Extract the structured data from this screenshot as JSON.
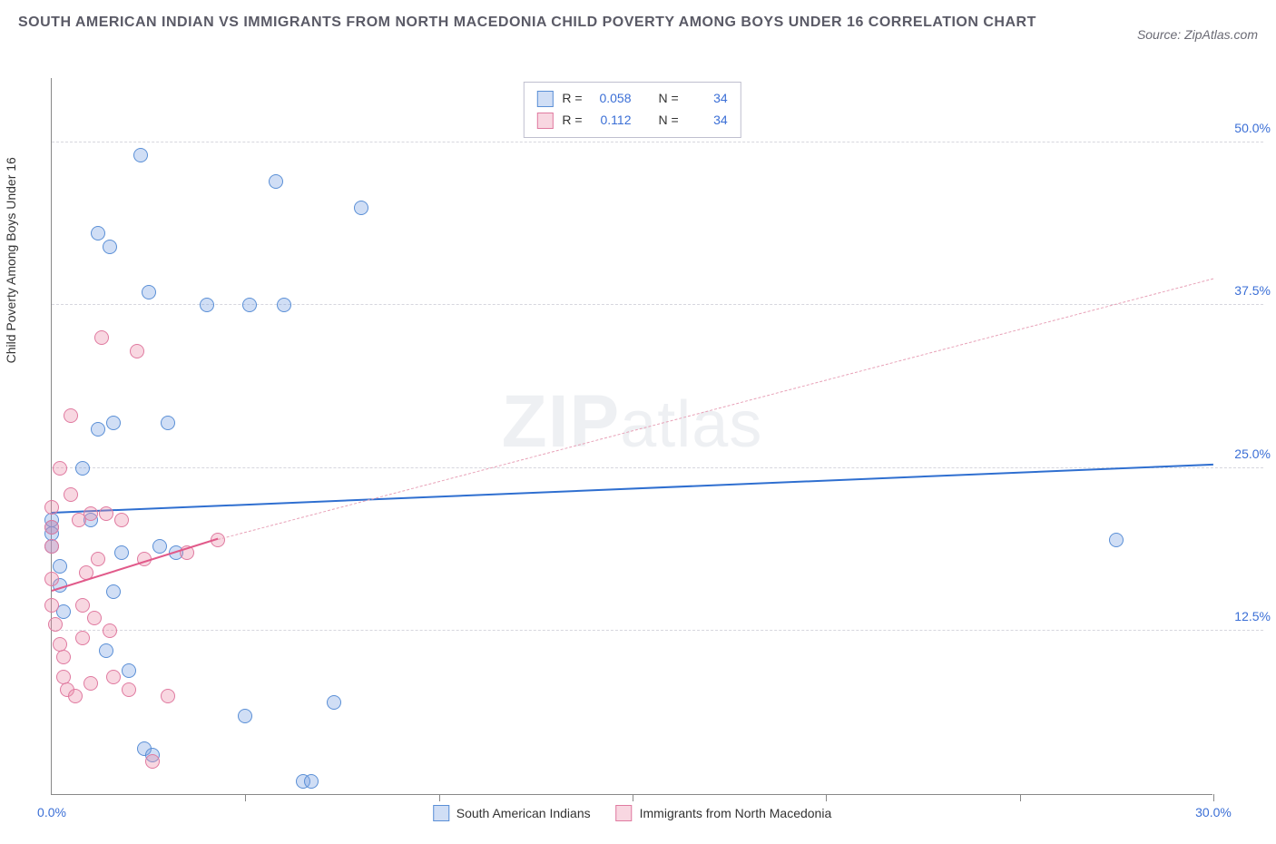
{
  "title": "SOUTH AMERICAN INDIAN VS IMMIGRANTS FROM NORTH MACEDONIA CHILD POVERTY AMONG BOYS UNDER 16 CORRELATION CHART",
  "source": "Source: ZipAtlas.com",
  "y_axis_label": "Child Poverty Among Boys Under 16",
  "watermark_a": "ZIP",
  "watermark_b": "atlas",
  "chart": {
    "type": "scatter",
    "xlim": [
      0,
      30
    ],
    "ylim": [
      0,
      55
    ],
    "x_ticks": [
      0,
      5,
      10,
      15,
      20,
      25,
      30
    ],
    "x_tick_labels": {
      "0": "0.0%",
      "30": "30.0%"
    },
    "y_gridlines": [
      12.5,
      25.0,
      37.5,
      50.0
    ],
    "y_tick_labels": [
      "12.5%",
      "25.0%",
      "37.5%",
      "50.0%"
    ],
    "background_color": "#ffffff",
    "grid_color": "#d6d6de",
    "axis_color": "#888888",
    "marker_radius": 8,
    "marker_stroke_width": 1.2,
    "series": [
      {
        "name": "South American Indians",
        "fill": "rgba(120,160,225,0.35)",
        "stroke": "#5a8fd6",
        "R": "0.058",
        "N": "34",
        "points": [
          [
            0.0,
            20.5
          ],
          [
            0.0,
            21.0
          ],
          [
            0.0,
            20.0
          ],
          [
            0.0,
            19.0
          ],
          [
            0.2,
            17.5
          ],
          [
            0.2,
            16.0
          ],
          [
            0.3,
            14.0
          ],
          [
            0.8,
            25.0
          ],
          [
            1.0,
            21.0
          ],
          [
            1.2,
            43.0
          ],
          [
            1.5,
            42.0
          ],
          [
            1.4,
            11.0
          ],
          [
            1.6,
            15.5
          ],
          [
            1.2,
            28.0
          ],
          [
            1.6,
            28.5
          ],
          [
            1.8,
            18.5
          ],
          [
            2.0,
            9.5
          ],
          [
            2.3,
            49.0
          ],
          [
            2.4,
            3.5
          ],
          [
            2.5,
            38.5
          ],
          [
            2.6,
            3.0
          ],
          [
            2.8,
            19.0
          ],
          [
            3.0,
            28.5
          ],
          [
            3.2,
            18.5
          ],
          [
            4.0,
            37.5
          ],
          [
            5.0,
            6.0
          ],
          [
            5.1,
            37.5
          ],
          [
            5.8,
            47.0
          ],
          [
            6.0,
            37.5
          ],
          [
            6.5,
            1.0
          ],
          [
            6.7,
            1.0
          ],
          [
            7.3,
            7.0
          ],
          [
            8.0,
            45.0
          ],
          [
            27.5,
            19.5
          ]
        ],
        "trend": {
          "x1": 0,
          "y1": 21.5,
          "x2": 30,
          "y2": 25.2,
          "style": "solid",
          "color": "#2f6fd0",
          "width": 2.5
        },
        "trend_ext": null
      },
      {
        "name": "Immigrants from North Macedonia",
        "fill": "rgba(235,140,170,0.35)",
        "stroke": "#e07aa0",
        "R": "0.112",
        "N": "34",
        "points": [
          [
            0.0,
            22.0
          ],
          [
            0.0,
            20.5
          ],
          [
            0.0,
            19.0
          ],
          [
            0.0,
            16.5
          ],
          [
            0.0,
            14.5
          ],
          [
            0.1,
            13.0
          ],
          [
            0.2,
            25.0
          ],
          [
            0.2,
            11.5
          ],
          [
            0.3,
            10.5
          ],
          [
            0.3,
            9.0
          ],
          [
            0.4,
            8.0
          ],
          [
            0.5,
            23.0
          ],
          [
            0.5,
            29.0
          ],
          [
            0.6,
            7.5
          ],
          [
            0.7,
            21.0
          ],
          [
            0.8,
            12.0
          ],
          [
            0.8,
            14.5
          ],
          [
            0.9,
            17.0
          ],
          [
            1.0,
            21.5
          ],
          [
            1.0,
            8.5
          ],
          [
            1.1,
            13.5
          ],
          [
            1.2,
            18.0
          ],
          [
            1.3,
            35.0
          ],
          [
            1.4,
            21.5
          ],
          [
            1.5,
            12.5
          ],
          [
            1.6,
            9.0
          ],
          [
            1.8,
            21.0
          ],
          [
            2.0,
            8.0
          ],
          [
            2.2,
            34.0
          ],
          [
            2.4,
            18.0
          ],
          [
            2.6,
            2.5
          ],
          [
            3.0,
            7.5
          ],
          [
            3.5,
            18.5
          ],
          [
            4.3,
            19.5
          ]
        ],
        "trend": {
          "x1": 0,
          "y1": 15.5,
          "x2": 4.3,
          "y2": 19.5,
          "style": "solid",
          "color": "#e15a8a",
          "width": 2
        },
        "trend_ext": {
          "x1": 4.3,
          "y1": 19.5,
          "x2": 30,
          "y2": 39.5,
          "style": "dash",
          "color": "#e8a2b8",
          "width": 1.5
        }
      }
    ]
  },
  "legend_top": {
    "rows": [
      {
        "swatch_fill": "rgba(120,160,225,0.35)",
        "swatch_stroke": "#5a8fd6",
        "R_label": "R =",
        "R": "0.058",
        "N_label": "N =",
        "N": "34"
      },
      {
        "swatch_fill": "rgba(235,140,170,0.35)",
        "swatch_stroke": "#e07aa0",
        "R_label": "R =",
        "R": "0.112",
        "N_label": "N =",
        "N": "34"
      }
    ]
  },
  "legend_bottom": {
    "items": [
      {
        "swatch_fill": "rgba(120,160,225,0.35)",
        "swatch_stroke": "#5a8fd6",
        "label": "South American Indians"
      },
      {
        "swatch_fill": "rgba(235,140,170,0.35)",
        "swatch_stroke": "#e07aa0",
        "label": "Immigrants from North Macedonia"
      }
    ]
  }
}
